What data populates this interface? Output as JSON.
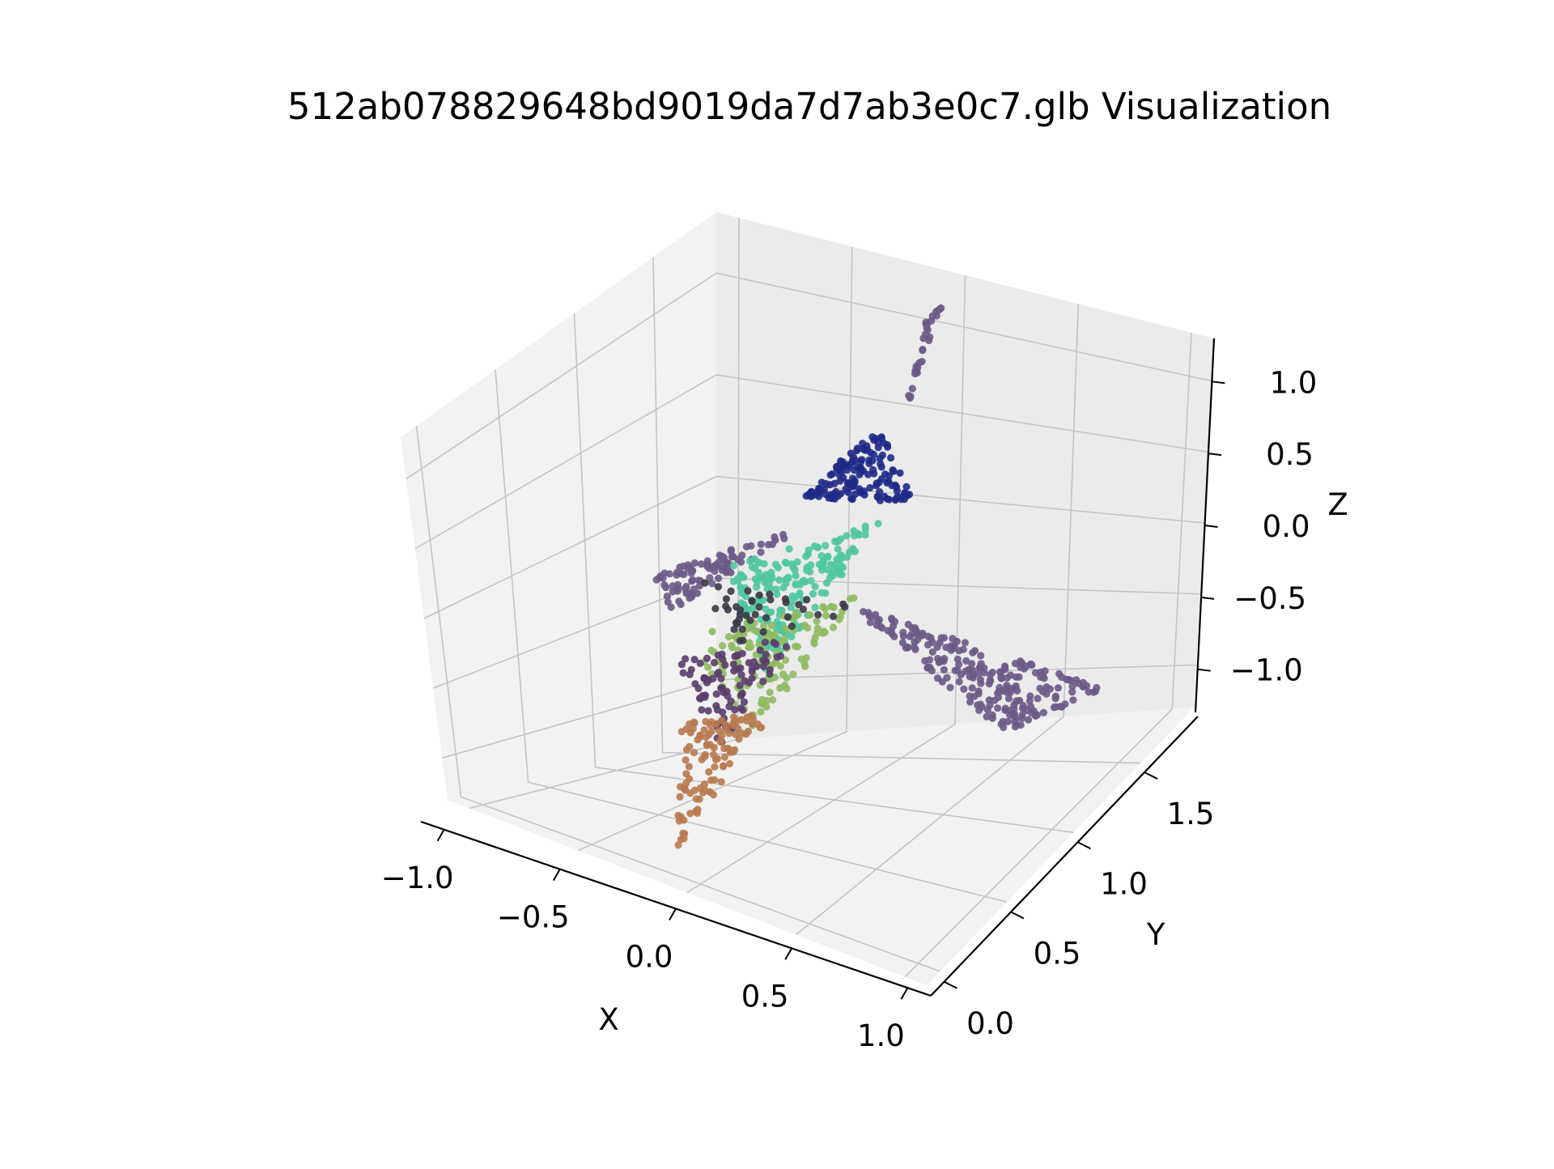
{
  "chart_data": {
    "type": "scatter",
    "title": "512ab078829648bd9019da7d7ab3e0c7.glb Visualization",
    "xlabel": "X",
    "ylabel": "Y",
    "zlabel": "Z",
    "xlim": [
      -1.1,
      1.1
    ],
    "ylim": [
      -0.1,
      1.9
    ],
    "zlim": [
      -1.3,
      1.3
    ],
    "xticks": [
      "−1.0",
      "−0.5",
      "0.0",
      "0.5",
      "1.0"
    ],
    "yticks": [
      "0.0",
      "0.5",
      "1.0",
      "1.5"
    ],
    "zticks": [
      "−1.0",
      "−0.5",
      "0.0",
      "0.5",
      "1.0"
    ],
    "grid": true,
    "projection": "3d",
    "point_groups": [
      {
        "color": "#6b5a87",
        "region": "right-wing",
        "count": 230
      },
      {
        "color": "#6b5a87",
        "region": "left-wing",
        "count": 90
      },
      {
        "color": "#1f2a88",
        "region": "upper-fin",
        "count": 140
      },
      {
        "color": "#6b5a87",
        "region": "fin-tip",
        "count": 30
      },
      {
        "color": "#4fc7a0",
        "region": "mid-body",
        "count": 190
      },
      {
        "color": "#8fba62",
        "region": "lower-edge",
        "count": 120
      },
      {
        "color": "#5a3d6b",
        "region": "lower-body",
        "count": 90
      },
      {
        "color": "#b87a50",
        "region": "bottom-tail",
        "count": 110
      },
      {
        "color": "#3a3a46",
        "region": "dark-clusters",
        "count": 40
      }
    ]
  }
}
